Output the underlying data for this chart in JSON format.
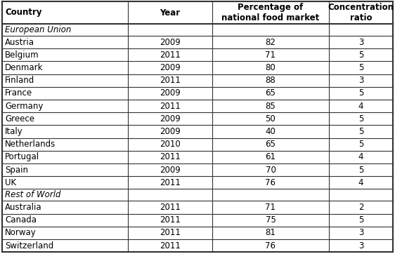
{
  "headers": [
    "Country",
    "Year",
    "Percentage of\nnational food market",
    "Concentration\nratio"
  ],
  "header_aligns": [
    "left",
    "center",
    "center",
    "center"
  ],
  "section_eu": "European Union",
  "section_row": "Rest of World",
  "rows": [
    [
      "Austria",
      "2009",
      "82",
      "3"
    ],
    [
      "Belgium",
      "2011",
      "71",
      "5"
    ],
    [
      "Denmark",
      "2009",
      "80",
      "5"
    ],
    [
      "Finland",
      "2011",
      "88",
      "3"
    ],
    [
      "France",
      "2009",
      "65",
      "5"
    ],
    [
      "Germany",
      "2011",
      "85",
      "4"
    ],
    [
      "Greece",
      "2009",
      "50",
      "5"
    ],
    [
      "Italy",
      "2009",
      "40",
      "5"
    ],
    [
      "Netherlands",
      "2010",
      "65",
      "5"
    ],
    [
      "Portugal",
      "2011",
      "61",
      "4"
    ],
    [
      "Spain",
      "2009",
      "70",
      "5"
    ],
    [
      "UK",
      "2011",
      "76",
      "4"
    ]
  ],
  "rows_row": [
    [
      "Australia",
      "2011",
      "71",
      "2"
    ],
    [
      "Canada",
      "2011",
      "75",
      "5"
    ],
    [
      "Norway",
      "2011",
      "81",
      "3"
    ],
    [
      "Switzerland",
      "2011",
      "76",
      "3"
    ]
  ],
  "bg_color": "#ffffff",
  "line_color": "#333333",
  "text_color": "#000000",
  "font_size": 8.5,
  "header_font_size": 8.5,
  "fig_width": 5.62,
  "fig_height": 3.72,
  "dpi": 100
}
